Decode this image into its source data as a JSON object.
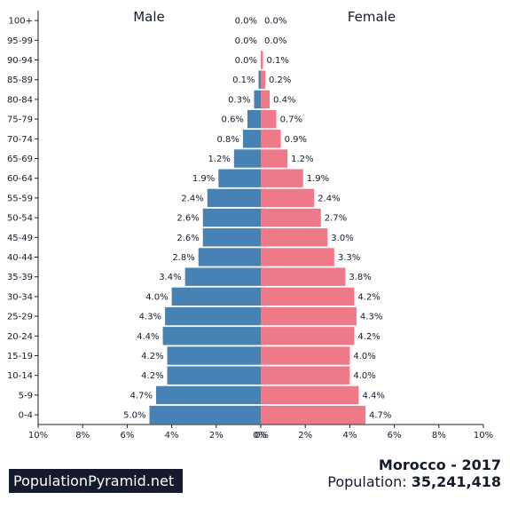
{
  "chart_data": {
    "type": "bar",
    "subtype": "population-pyramid",
    "categories": [
      "100+",
      "95-99",
      "90-94",
      "85-89",
      "80-84",
      "75-79",
      "70-74",
      "65-69",
      "60-64",
      "55-59",
      "50-54",
      "45-49",
      "40-44",
      "35-39",
      "30-34",
      "25-29",
      "20-24",
      "15-19",
      "10-14",
      "5-9",
      "0-4"
    ],
    "series": [
      {
        "name": "Male",
        "color": "#4682b4",
        "values": [
          0.0,
          0.0,
          0.0,
          0.1,
          0.3,
          0.6,
          0.8,
          1.2,
          1.9,
          2.4,
          2.6,
          2.6,
          2.8,
          3.4,
          4.0,
          4.3,
          4.4,
          4.2,
          4.2,
          4.7,
          5.0
        ],
        "labels": [
          "0.0%",
          "0.0%",
          "0.0%",
          "0.1%",
          "0.3%",
          "0.6%",
          "0.8%",
          "1.2%",
          "1.9%",
          "2.4%",
          "2.6%",
          "2.6%",
          "2.8%",
          "3.4%",
          "4.0%",
          "4.3%",
          "4.4%",
          "4.2%",
          "4.2%",
          "4.7%",
          "5.0%"
        ]
      },
      {
        "name": "Female",
        "color": "#ee7989",
        "values": [
          0.0,
          0.0,
          0.1,
          0.2,
          0.4,
          0.7,
          0.9,
          1.2,
          1.9,
          2.4,
          2.7,
          3.0,
          3.3,
          3.8,
          4.2,
          4.3,
          4.2,
          4.0,
          4.0,
          4.4,
          4.7
        ],
        "labels": [
          "0.0%",
          "0.0%",
          "0.1%",
          "0.2%",
          "0.4%",
          "0.7%",
          "0.9%",
          "1.2%",
          "1.9%",
          "2.4%",
          "2.7%",
          "3.0%",
          "3.3%",
          "3.8%",
          "4.2%",
          "4.3%",
          "4.2%",
          "4.0%",
          "4.0%",
          "4.4%",
          "4.7%"
        ]
      }
    ],
    "xlim": [
      -10,
      10
    ],
    "xticks": [
      "10%",
      "8%",
      "6%",
      "4%",
      "2%",
      "0%",
      "0%",
      "2%",
      "4%",
      "6%",
      "8%",
      "10%"
    ],
    "grid": false
  },
  "footer": {
    "brand": "PopulationPyramid.net",
    "country_year": "Morocco - 2017",
    "population_label": "Population: ",
    "population_value": "35,241,418"
  }
}
